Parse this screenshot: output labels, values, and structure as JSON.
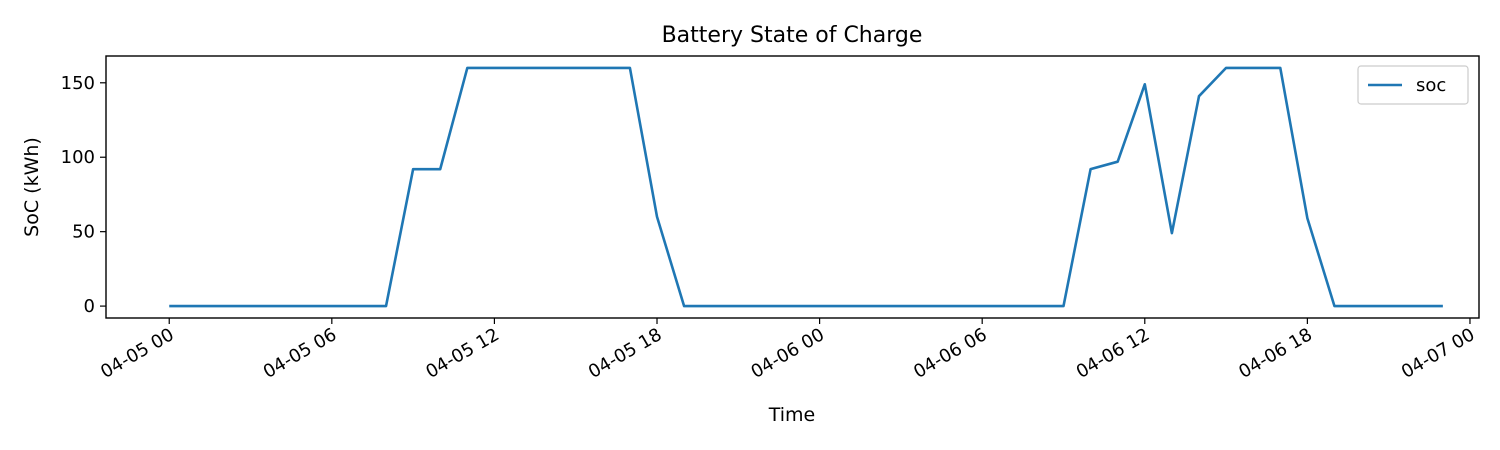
{
  "chart_data": {
    "type": "line",
    "title": "Battery State of Charge",
    "xlabel": "Time",
    "ylabel": "SoC (kWh)",
    "x_ticks": [
      "04-05 00",
      "04-05 06",
      "04-05 12",
      "04-05 18",
      "04-06 00",
      "04-06 06",
      "04-06 12",
      "04-06 18",
      "04-07 00"
    ],
    "y_ticks": [
      0,
      50,
      100,
      150
    ],
    "ylim": [
      -8,
      168
    ],
    "xlim": [
      "04-04 21:40",
      "04-07 00:20"
    ],
    "grid": false,
    "legend_placement": "top-right",
    "series": [
      {
        "name": "soc",
        "color": "#1f77b4",
        "x": [
          "04-05 00:00",
          "04-05 01:00",
          "04-05 02:00",
          "04-05 03:00",
          "04-05 04:00",
          "04-05 05:00",
          "04-05 06:00",
          "04-05 07:00",
          "04-05 08:00",
          "04-05 09:00",
          "04-05 10:00",
          "04-05 11:00",
          "04-05 12:00",
          "04-05 13:00",
          "04-05 14:00",
          "04-05 15:00",
          "04-05 16:00",
          "04-05 17:00",
          "04-05 18:00",
          "04-05 19:00",
          "04-05 20:00",
          "04-05 21:00",
          "04-05 22:00",
          "04-05 23:00",
          "04-06 00:00",
          "04-06 01:00",
          "04-06 02:00",
          "04-06 03:00",
          "04-06 04:00",
          "04-06 05:00",
          "04-06 06:00",
          "04-06 07:00",
          "04-06 08:00",
          "04-06 09:00",
          "04-06 10:00",
          "04-06 11:00",
          "04-06 12:00",
          "04-06 13:00",
          "04-06 14:00",
          "04-06 15:00",
          "04-06 16:00",
          "04-06 17:00",
          "04-06 18:00",
          "04-06 19:00",
          "04-06 20:00",
          "04-06 21:00",
          "04-06 22:00",
          "04-06 23:00"
        ],
        "values": [
          0,
          0,
          0,
          0,
          0,
          0,
          0,
          0,
          0,
          92,
          92,
          160,
          160,
          160,
          160,
          160,
          160,
          160,
          60,
          0,
          0,
          0,
          0,
          0,
          0,
          0,
          0,
          0,
          0,
          0,
          0,
          0,
          0,
          0,
          92,
          97,
          149,
          49,
          141,
          160,
          160,
          160,
          59,
          0,
          0,
          0,
          0,
          0
        ]
      }
    ]
  }
}
